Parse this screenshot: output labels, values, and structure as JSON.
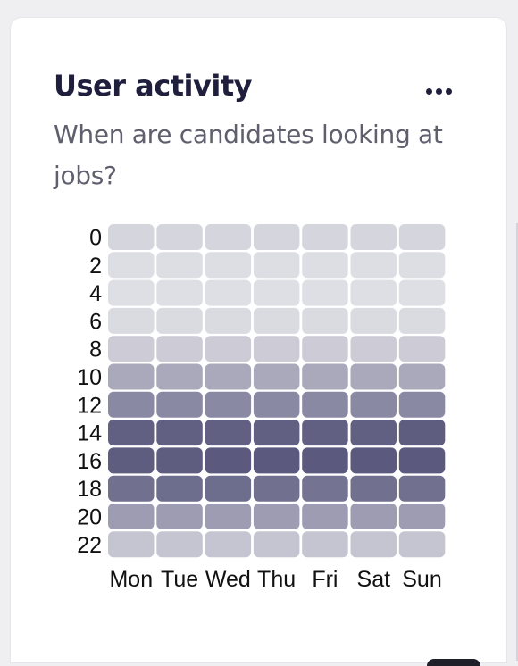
{
  "widget": {
    "title": "User activity",
    "subtitle": "When are candidates looking at jobs?",
    "menu_icon": "more-horizontal-icon"
  },
  "chart_data": {
    "type": "heatmap",
    "title": "",
    "xlabel": "",
    "ylabel": "",
    "x": [
      "Mon",
      "Tue",
      "Wed",
      "Thu",
      "Fri",
      "Sat",
      "Sun"
    ],
    "y": [
      "0",
      "2",
      "4",
      "6",
      "8",
      "10",
      "12",
      "14",
      "16",
      "18",
      "20",
      "22"
    ],
    "values": [
      [
        14,
        14,
        14,
        14,
        14,
        14,
        14
      ],
      [
        9,
        9,
        9,
        9,
        9,
        9,
        9
      ],
      [
        8,
        8,
        8,
        8,
        8,
        8,
        8
      ],
      [
        11,
        11,
        11,
        11,
        11,
        11,
        11
      ],
      [
        20,
        20,
        20,
        20,
        20,
        20,
        20
      ],
      [
        42,
        42,
        42,
        42,
        42,
        42,
        42
      ],
      [
        62,
        62,
        62,
        62,
        62,
        62,
        62
      ],
      [
        88,
        88,
        88,
        88,
        88,
        88,
        90
      ],
      [
        90,
        90,
        92,
        92,
        92,
        92,
        92
      ],
      [
        78,
        80,
        80,
        78,
        76,
        78,
        78
      ],
      [
        50,
        50,
        50,
        50,
        50,
        50,
        50
      ],
      [
        24,
        24,
        24,
        24,
        24,
        24,
        24
      ]
    ],
    "value_range": [
      0,
      100
    ],
    "color_low": "#ebebef",
    "color_high": "#4e4d74",
    "grid": false,
    "legend": "none"
  }
}
